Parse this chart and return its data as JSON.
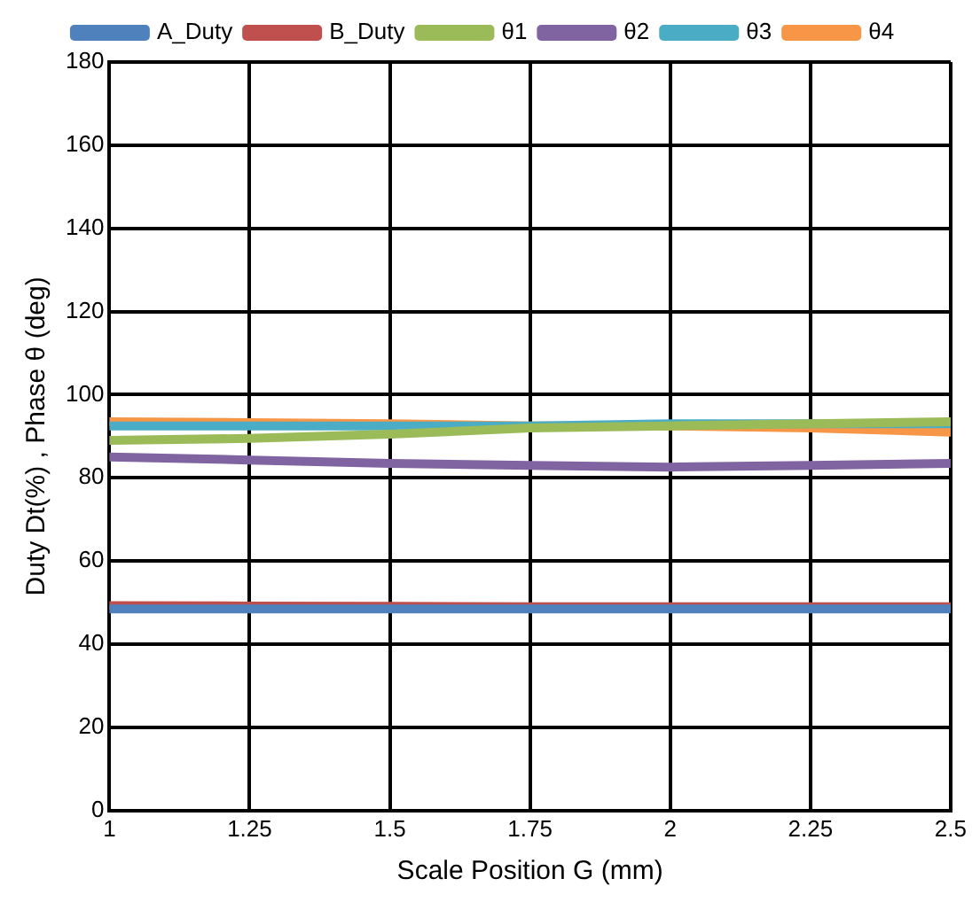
{
  "chart_data": {
    "type": "line",
    "xlabel": "Scale Position G (mm)",
    "ylabel": "Duty Dt(%) , Phase θ (deg)",
    "x": [
      1,
      1.25,
      1.5,
      1.75,
      2,
      2.25,
      2.5
    ],
    "xlim": [
      1,
      2.5
    ],
    "xticks": [
      1,
      1.25,
      1.5,
      1.75,
      2,
      2.25,
      2.5
    ],
    "ylim": [
      0,
      180
    ],
    "yticks": [
      0,
      20,
      40,
      60,
      80,
      100,
      120,
      140,
      160,
      180
    ],
    "grid": true,
    "legend": "top",
    "marker": "none",
    "line_style": "solid",
    "series": [
      {
        "name": "A_Duty",
        "color": "#4f81bd",
        "values": [
          48.5,
          48.5,
          48.5,
          48.5,
          48.5,
          48.5,
          48.5
        ]
      },
      {
        "name": "B_Duty",
        "color": "#c0504d",
        "values": [
          49.3,
          49.2,
          49.1,
          49,
          49,
          49,
          49
        ]
      },
      {
        "name": "θ1",
        "color": "#9bbb59",
        "values": [
          89,
          89.5,
          90.5,
          92,
          92.5,
          93,
          93.5
        ]
      },
      {
        "name": "θ2",
        "color": "#8064a2",
        "values": [
          85,
          84.3,
          83.5,
          83,
          82.6,
          83,
          83.5
        ]
      },
      {
        "name": "θ3",
        "color": "#4bacc6",
        "values": [
          92.5,
          92.5,
          92.5,
          92.5,
          93,
          93,
          93
        ]
      },
      {
        "name": "θ4",
        "color": "#f79646",
        "values": [
          93.5,
          93.3,
          93,
          92.5,
          92.5,
          92,
          91
        ]
      }
    ]
  }
}
